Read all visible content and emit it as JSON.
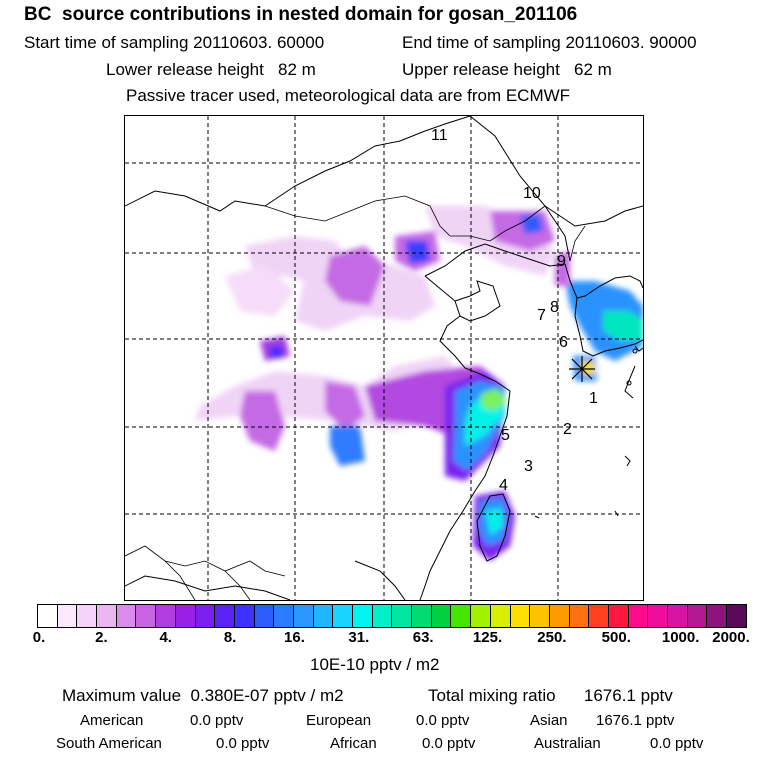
{
  "header": {
    "title": "BC  source contributions in nested domain for gosan_201106",
    "start_sampling": "Start time of sampling 20110603. 60000",
    "end_sampling": "End time of sampling 20110603. 90000",
    "lower_release": "Lower release height   82 m",
    "upper_release": "Upper release height   62 m",
    "tracer_note": "Passive tracer used, meteorological data are from ECMWF"
  },
  "map": {
    "region_labels": [
      "1",
      "2",
      "3",
      "4",
      "5",
      "6",
      "7",
      "8",
      "9",
      "10",
      "11"
    ],
    "receptor_marker": "gosan-star"
  },
  "colorbar": {
    "ticks": [
      "0.",
      "2.",
      "4.",
      "8.",
      "16.",
      "31.",
      "63.",
      "125.",
      "250.",
      "500.",
      "1000.",
      "2000."
    ],
    "colors": [
      "#ffffff",
      "#fbe8fb",
      "#f5d2f7",
      "#eab5f0",
      "#d98ce9",
      "#c864e2",
      "#b13ce0",
      "#9a20e6",
      "#7c1ff0",
      "#5a22f5",
      "#3d32ff",
      "#2a5cff",
      "#2a7cff",
      "#2b98ff",
      "#1fb6ff",
      "#19d4ff",
      "#00f5ef",
      "#00f0c8",
      "#00e6a0",
      "#00dc70",
      "#00d040",
      "#44e600",
      "#a0f000",
      "#d8f000",
      "#ffe000",
      "#ffc200",
      "#ff9a00",
      "#ff7010",
      "#ff4020",
      "#ff1840",
      "#ff0c8c",
      "#f00c9c",
      "#d814a4",
      "#b41890",
      "#8c147c",
      "#5a0a58"
    ],
    "unit": "10E-10 pptv / m2"
  },
  "stats": {
    "maximum_value": "Maximum value  0.380E-07 pptv / m2",
    "total_mixing": "Total mixing ratio      1676.1 pptv",
    "regions": [
      {
        "name": "American",
        "value": "0.0 pptv"
      },
      {
        "name": "European",
        "value": "0.0 pptv"
      },
      {
        "name": "Asian",
        "value": "1676.1 pptv"
      },
      {
        "name": "South American",
        "value": "0.0 pptv"
      },
      {
        "name": "African",
        "value": "0.0 pptv"
      },
      {
        "name": "Australian",
        "value": "0.0 pptv"
      }
    ]
  }
}
